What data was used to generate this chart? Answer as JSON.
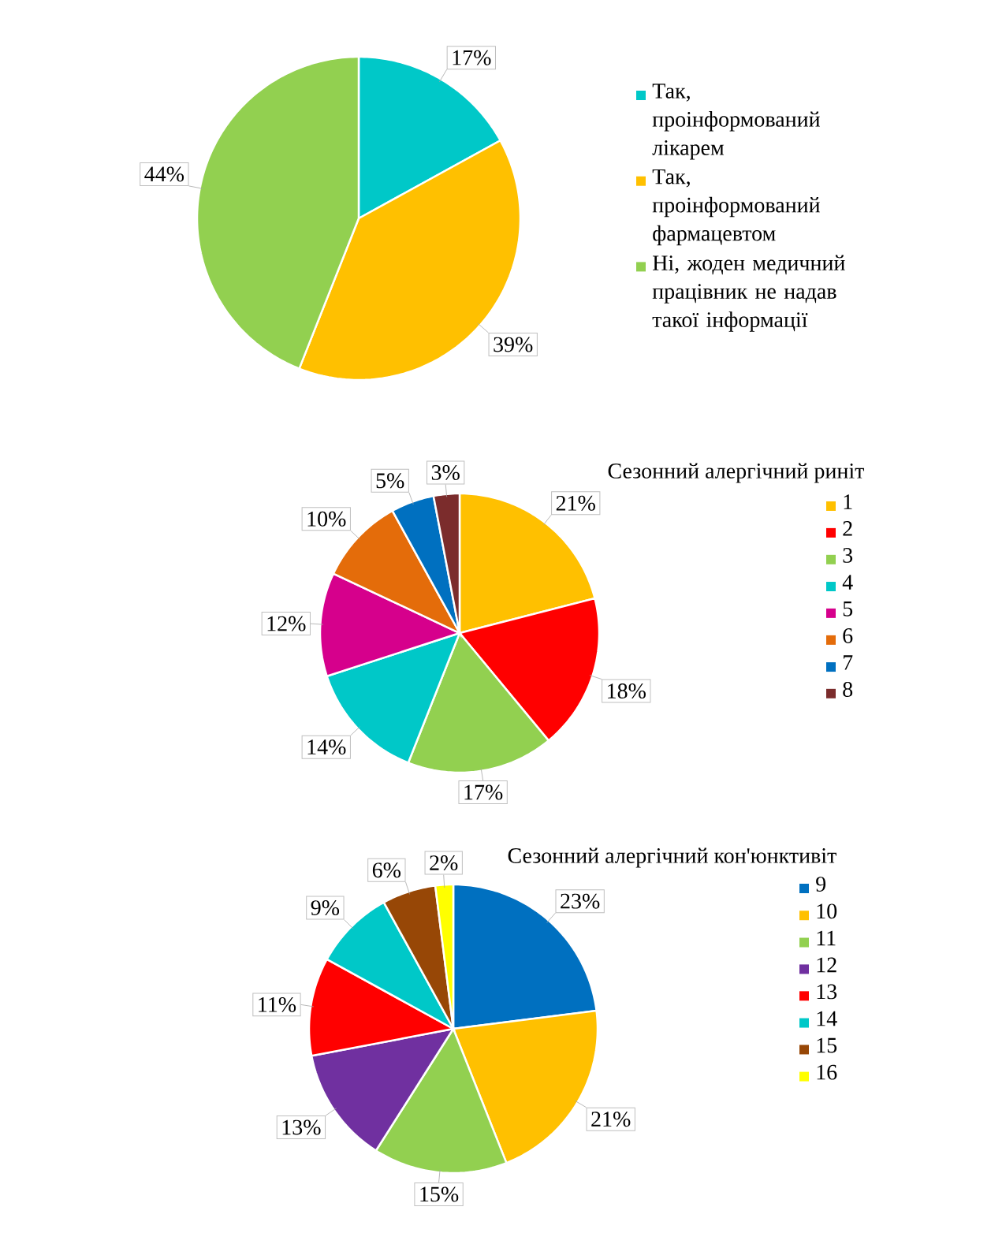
{
  "chart_data": [
    {
      "type": "pie",
      "categories": [
        "Так, проінформований лікарем",
        "Так, проінформований фармацевтом",
        "Ні, жоден медичний працівник не надав такої інформації"
      ],
      "values": [
        17,
        39,
        44
      ],
      "colors": [
        "#00c8c8",
        "#ffc000",
        "#92d050"
      ],
      "value_labels": [
        "17%",
        "39%",
        "44%"
      ],
      "legend": "right"
    },
    {
      "type": "pie",
      "title": "Сезонний алергічний риніт",
      "categories": [
        "1",
        "2",
        "3",
        "4",
        "5",
        "6",
        "7",
        "8"
      ],
      "values": [
        21,
        18,
        17,
        14,
        12,
        10,
        5,
        3
      ],
      "colors": [
        "#ffc000",
        "#ff0000",
        "#92d050",
        "#00c8c8",
        "#d6008c",
        "#e46c0a",
        "#0070c0",
        "#7b2c2c"
      ],
      "value_labels": [
        "21%",
        "18%",
        "17%",
        "14%",
        "12%",
        "10%",
        "5%",
        "3%"
      ],
      "legend": "right"
    },
    {
      "type": "pie",
      "title": "Сезонний алергічний кон'юнктивіт",
      "categories": [
        "9",
        "10",
        "11",
        "12",
        "13",
        "14",
        "15",
        "16"
      ],
      "values": [
        23,
        21,
        15,
        13,
        11,
        9,
        6,
        2
      ],
      "colors": [
        "#0070c0",
        "#ffc000",
        "#92d050",
        "#7030a0",
        "#ff0000",
        "#00c8c8",
        "#974706",
        "#ffff00"
      ],
      "value_labels": [
        "23%",
        "21%",
        "15%",
        "13%",
        "11%",
        "9%",
        "6%",
        "2%"
      ],
      "legend": "right"
    }
  ]
}
